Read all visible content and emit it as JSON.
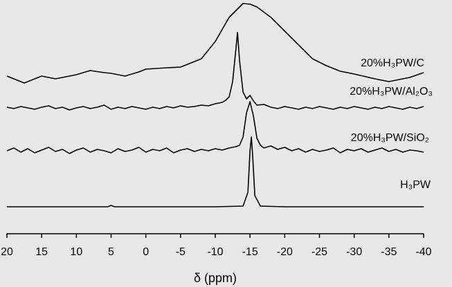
{
  "chart_data": {
    "type": "line",
    "xlabel": "δ (ppm)",
    "xlim": [
      20,
      -40
    ],
    "xticks": [
      20,
      15,
      10,
      5,
      0,
      -5,
      -10,
      -15,
      -20,
      -25,
      -30,
      -35,
      -40
    ],
    "ylim": [
      0,
      338
    ],
    "series": [
      {
        "name": "20%H₃PW/C",
        "color": "#000000",
        "x": [
          20,
          19,
          17.5,
          16,
          15,
          13,
          12,
          10,
          8,
          6,
          5,
          3,
          1,
          0,
          -3,
          -5,
          -8,
          -10,
          -12,
          -14,
          -15,
          -16,
          -18,
          -20,
          -22,
          -24,
          -26,
          -28,
          -30,
          -33,
          -35,
          -38,
          -40
        ],
        "values": [
          228,
          224,
          218,
          224,
          228,
          224,
          226,
          230,
          236,
          233,
          232,
          228,
          234,
          238,
          240,
          241,
          253,
          278,
          313,
          333,
          332,
          328,
          313,
          293,
          273,
          253,
          243,
          235,
          231,
          224,
          220,
          226,
          233
        ]
      },
      {
        "name": "20%H₃PW/Al₂O₃",
        "color": "#000000",
        "x": [
          20,
          19,
          18,
          17,
          16,
          15,
          14,
          13,
          12,
          11,
          10,
          9,
          8,
          7,
          6,
          5,
          4,
          3,
          2,
          1,
          0,
          -1,
          -2,
          -3,
          -4,
          -5,
          -6,
          -7,
          -8,
          -9,
          -10,
          -11,
          -11.5,
          -12,
          -12.5,
          -13,
          -13.2,
          -13.5,
          -14,
          -14.5,
          -15,
          -15.5,
          -16,
          -17,
          -18,
          -19,
          -20,
          -21,
          -22,
          -23,
          -24,
          -25,
          -26,
          -27,
          -28,
          -29,
          -30,
          -31,
          -32,
          -33,
          -34,
          -35,
          -36,
          -37,
          -38,
          -39,
          -40
        ],
        "values": [
          183,
          181,
          184,
          182,
          180,
          183,
          185,
          181,
          183,
          179,
          182,
          184,
          181,
          183,
          186,
          180,
          183,
          181,
          184,
          182,
          180,
          183,
          181,
          184,
          182,
          185,
          183,
          184,
          186,
          185,
          188,
          190,
          193,
          198,
          220,
          270,
          291,
          250,
          205,
          195,
          200,
          192,
          186,
          187,
          183,
          181,
          184,
          182,
          180,
          183,
          181,
          184,
          182,
          180,
          183,
          181,
          184,
          182,
          180,
          183,
          181,
          184,
          182,
          180,
          183,
          181,
          184
        ]
      },
      {
        "name": "20%H₃PW/SiO₂",
        "color": "#000000",
        "x": [
          20,
          19,
          18,
          17,
          16,
          15,
          14,
          13,
          12,
          11,
          10,
          9,
          8,
          7,
          6,
          5,
          4,
          3,
          2,
          1,
          0,
          -1,
          -2,
          -3,
          -4,
          -5,
          -6,
          -7,
          -8,
          -9,
          -10,
          -11,
          -12,
          -13,
          -13.5,
          -14,
          -14.5,
          -15,
          -15.5,
          -16,
          -16.5,
          -17,
          -18,
          -19,
          -20,
          -21,
          -22,
          -23,
          -24,
          -25,
          -26,
          -27,
          -28,
          -29,
          -30,
          -31,
          -32,
          -33,
          -34,
          -35,
          -36,
          -37,
          -38,
          -39,
          -40
        ],
        "values": [
          120,
          124,
          118,
          123,
          117,
          121,
          125,
          119,
          122,
          116,
          121,
          124,
          118,
          122,
          120,
          117,
          123,
          119,
          121,
          125,
          118,
          122,
          120,
          124,
          117,
          121,
          123,
          119,
          122,
          120,
          123,
          121,
          124,
          126,
          128,
          140,
          175,
          191,
          170,
          138,
          128,
          124,
          127,
          122,
          125,
          120,
          123,
          118,
          122,
          119,
          121,
          124,
          117,
          122,
          120,
          123,
          118,
          121,
          124,
          119,
          122,
          118,
          121,
          120,
          118
        ]
      },
      {
        "name": "H₃PW",
        "color": "#000000",
        "x": [
          20,
          10,
          5.5,
          5,
          4.5,
          0,
          -10,
          -14,
          -14.7,
          -15,
          -15.2,
          -15.4,
          -15.7,
          -16.5,
          -20,
          -30,
          -40
        ],
        "values": [
          39,
          39,
          39,
          41,
          39,
          39,
          39,
          40,
          60,
          120,
          140,
          110,
          55,
          40,
          39,
          39,
          39
        ]
      }
    ]
  }
}
